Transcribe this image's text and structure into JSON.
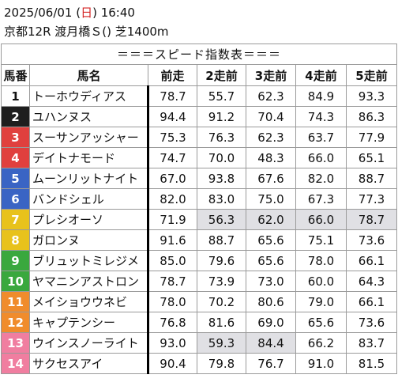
{
  "header": {
    "date_prefix": "2025/06/01 (",
    "weekday": "日",
    "date_suffix": ") 16:40",
    "race_info": "京都12R 渡月橋Ｓ() 芝1400m"
  },
  "table": {
    "title": "＝＝＝スピード指数表＝＝＝",
    "columns": [
      "馬番",
      "馬名",
      "前走",
      "2走前",
      "3走前",
      "4走前",
      "5走前"
    ],
    "rows": [
      {
        "no": "1",
        "name": "トーホウディアス",
        "vals": [
          "78.7",
          "55.7",
          "62.3",
          "84.9",
          "93.3"
        ],
        "bg": "#ffffff",
        "fg": "#111111",
        "hl": [
          false,
          false,
          false,
          false,
          false
        ]
      },
      {
        "no": "2",
        "name": "ユハンヌス",
        "vals": [
          "94.4",
          "91.2",
          "70.4",
          "74.3",
          "86.3"
        ],
        "bg": "#1e1e1e",
        "fg": "#ffffff",
        "hl": [
          false,
          false,
          false,
          false,
          false
        ]
      },
      {
        "no": "3",
        "name": "スーサンアッシャー",
        "vals": [
          "75.3",
          "76.3",
          "62.3",
          "63.7",
          "77.9"
        ],
        "bg": "#e0403e",
        "fg": "#ffffff",
        "hl": [
          false,
          false,
          false,
          false,
          false
        ]
      },
      {
        "no": "4",
        "name": "デイトナモード",
        "vals": [
          "74.7",
          "70.0",
          "48.3",
          "66.0",
          "65.1"
        ],
        "bg": "#e0403e",
        "fg": "#ffffff",
        "hl": [
          false,
          false,
          false,
          false,
          false
        ]
      },
      {
        "no": "5",
        "name": "ムーンリットナイト",
        "vals": [
          "67.0",
          "93.8",
          "67.6",
          "82.0",
          "88.7"
        ],
        "bg": "#3a64c4",
        "fg": "#ffffff",
        "hl": [
          false,
          false,
          false,
          false,
          false
        ]
      },
      {
        "no": "6",
        "name": "バンドシェル",
        "vals": [
          "82.0",
          "83.0",
          "75.0",
          "67.3",
          "77.3"
        ],
        "bg": "#3a64c4",
        "fg": "#ffffff",
        "hl": [
          false,
          false,
          false,
          false,
          false
        ]
      },
      {
        "no": "7",
        "name": "プレシオーソ",
        "vals": [
          "71.9",
          "56.3",
          "62.0",
          "66.0",
          "78.7"
        ],
        "bg": "#e8c21c",
        "fg": "#ffffff",
        "hl": [
          false,
          true,
          true,
          true,
          true
        ]
      },
      {
        "no": "8",
        "name": "ガロンヌ",
        "vals": [
          "91.6",
          "88.7",
          "65.6",
          "75.1",
          "73.6"
        ],
        "bg": "#e8c21c",
        "fg": "#ffffff",
        "hl": [
          false,
          false,
          false,
          false,
          false
        ]
      },
      {
        "no": "9",
        "name": "ブリュットミレジメ",
        "vals": [
          "85.0",
          "79.6",
          "65.6",
          "78.0",
          "66.1"
        ],
        "bg": "#3aa83e",
        "fg": "#ffffff",
        "hl": [
          false,
          false,
          false,
          false,
          false
        ]
      },
      {
        "no": "10",
        "name": "ヤマニンアストロン",
        "vals": [
          "78.7",
          "73.9",
          "73.0",
          "60.0",
          "64.3"
        ],
        "bg": "#3aa83e",
        "fg": "#ffffff",
        "hl": [
          false,
          false,
          false,
          false,
          false
        ]
      },
      {
        "no": "11",
        "name": "メイショウウネビ",
        "vals": [
          "78.0",
          "70.2",
          "80.6",
          "79.0",
          "66.1"
        ],
        "bg": "#f08c2c",
        "fg": "#ffffff",
        "hl": [
          false,
          false,
          false,
          false,
          false
        ]
      },
      {
        "no": "12",
        "name": "キャプテンシー",
        "vals": [
          "76.8",
          "81.6",
          "69.0",
          "65.6",
          "73.6"
        ],
        "bg": "#f08c2c",
        "fg": "#ffffff",
        "hl": [
          false,
          false,
          false,
          false,
          false
        ]
      },
      {
        "no": "13",
        "name": "ウインスノーライト",
        "vals": [
          "93.0",
          "59.3",
          "84.4",
          "66.2",
          "83.7"
        ],
        "bg": "#f07ea0",
        "fg": "#ffffff",
        "hl": [
          false,
          true,
          true,
          false,
          false
        ]
      },
      {
        "no": "14",
        "name": "サクセスアイ",
        "vals": [
          "90.4",
          "79.8",
          "76.7",
          "91.0",
          "81.5"
        ],
        "bg": "#f07ea0",
        "fg": "#ffffff",
        "hl": [
          false,
          false,
          false,
          false,
          false
        ]
      }
    ]
  }
}
